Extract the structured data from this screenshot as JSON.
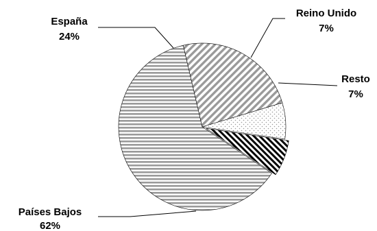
{
  "chart_data": {
    "type": "pie",
    "slices": [
      {
        "name": "Países Bajos",
        "value": 62,
        "label": "62%",
        "pattern": "horizontal-lines",
        "color": "#9a9a9a"
      },
      {
        "name": "España",
        "value": 24,
        "label": "24%",
        "pattern": "diagonal-lines",
        "color": "#9a9a9a"
      },
      {
        "name": "Reino Unido",
        "value": 7,
        "label": "7%",
        "pattern": "dots",
        "color": "#9a9a9a"
      },
      {
        "name": "Resto",
        "value": 7,
        "label": "7%",
        "pattern": "bold-diagonal-lines",
        "color": "#000000"
      }
    ],
    "title": "",
    "legend": "none",
    "labels": "outside-with-leaders"
  }
}
